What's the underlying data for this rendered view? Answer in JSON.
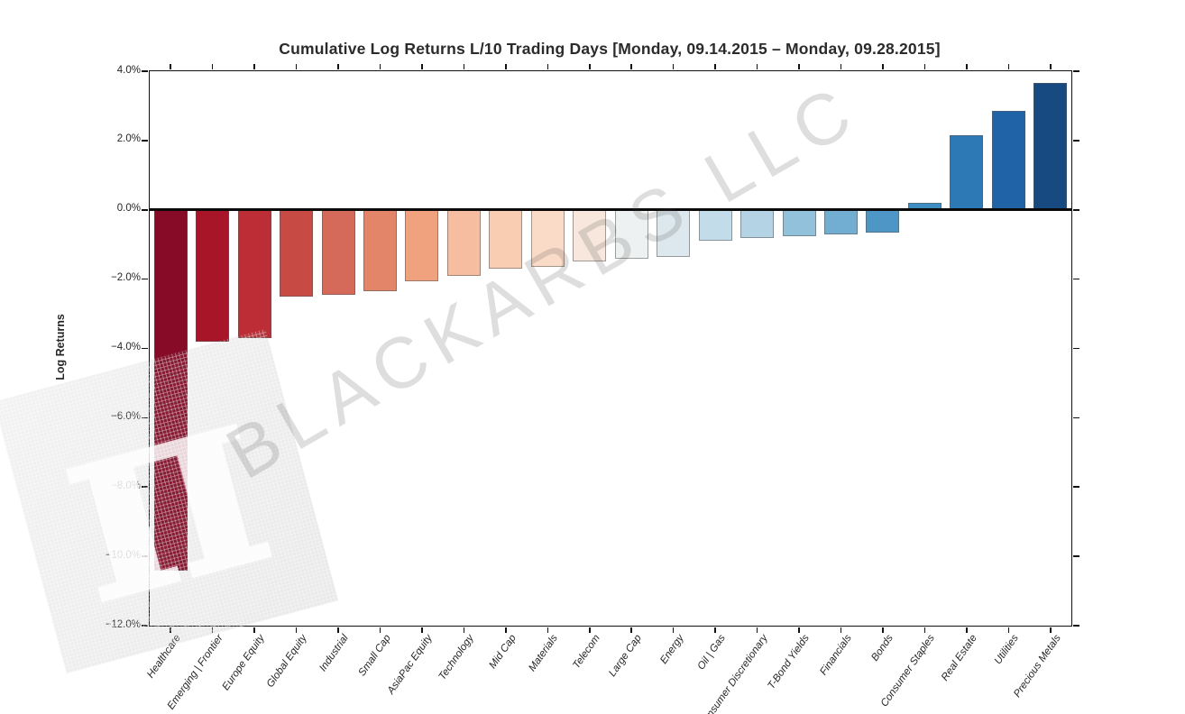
{
  "title": "Cumulative Log Returns L/10 Trading Days  [Monday, 09.14.2015 – Monday, 09.28.2015]",
  "watermark": {
    "text": "BLACKARBS LLC",
    "logo_glyph": "π"
  },
  "chart_data": {
    "type": "bar",
    "title": "Cumulative Log Returns L/10 Trading Days  [Monday, 09.14.2015 – Monday, 09.28.2015]",
    "xlabel": "",
    "ylabel": "Log Returns",
    "ylim": [
      -12,
      4
    ],
    "grid": false,
    "legend": "none",
    "ytick_values": [
      4,
      2,
      0,
      -2,
      -4,
      -6,
      -8,
      -10,
      -12
    ],
    "ytick_labels": [
      "4.0%",
      "2.0%",
      "0.0%",
      "−2.0%",
      "−4.0%",
      "−6.0%",
      "−8.0%",
      "−10.0%",
      "−12.0%"
    ],
    "categories": [
      "Healthcare",
      "Emerging | Frontier",
      "Europe Equity",
      "Global Equity",
      "Industrial",
      "Small Cap",
      "AsiaPac Equity",
      "Technology",
      "Mid Cap",
      "Materials",
      "Telecom",
      "Large Cap",
      "Energy",
      "Oil | Gas",
      "Consumer Discretionary",
      "T-Bond Yields",
      "Financials",
      "Bonds",
      "Consumer Staples",
      "Real Estate",
      "Utilities",
      "Precious Metals"
    ],
    "values": [
      -10.4,
      -3.8,
      -3.7,
      -2.5,
      -2.45,
      -2.35,
      -2.05,
      -1.9,
      -1.7,
      -1.65,
      -1.5,
      -1.4,
      -1.35,
      -0.9,
      -0.8,
      -0.75,
      -0.7,
      -0.65,
      0.2,
      2.15,
      2.85,
      3.65
    ],
    "bar_colors": [
      "#870b27",
      "#a81529",
      "#bd2d35",
      "#c74a44",
      "#d56a5a",
      "#e28568",
      "#f0a17e",
      "#f6bda0",
      "#f9cdb2",
      "#fadbc8",
      "#f7e7dd",
      "#eef1f1",
      "#dce8ee",
      "#c3dcea",
      "#b4d4e5",
      "#92c1dc",
      "#71aed2",
      "#4e96c6",
      "#3d8cc2",
      "#2d79b5",
      "#2063a7",
      "#174a80"
    ]
  }
}
